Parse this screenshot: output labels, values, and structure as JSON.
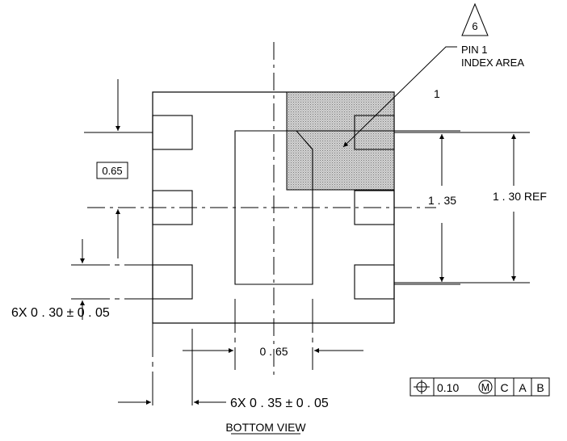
{
  "view_title": "BOTTOM VIEW",
  "pin1": {
    "note_number": "6",
    "label_line1": "PIN 1",
    "label_line2": "INDEX AREA",
    "pin_number": "1"
  },
  "dimensions": {
    "pad_pitch": "0.65",
    "pad_width": "6X  0 . 30 ± 0 . 05",
    "pad_length": "6X  0 . 35 ± 0 . 05",
    "center_gap": "0 . 65",
    "body_height": "1 . 35",
    "exposed_pad_height": "1 . 30 REF"
  },
  "feature_control_frame": {
    "symbol": "position-icon",
    "tolerance": "0.10",
    "modifier": "M",
    "datum_1": "C",
    "datum_2": "A",
    "datum_3": "B"
  }
}
